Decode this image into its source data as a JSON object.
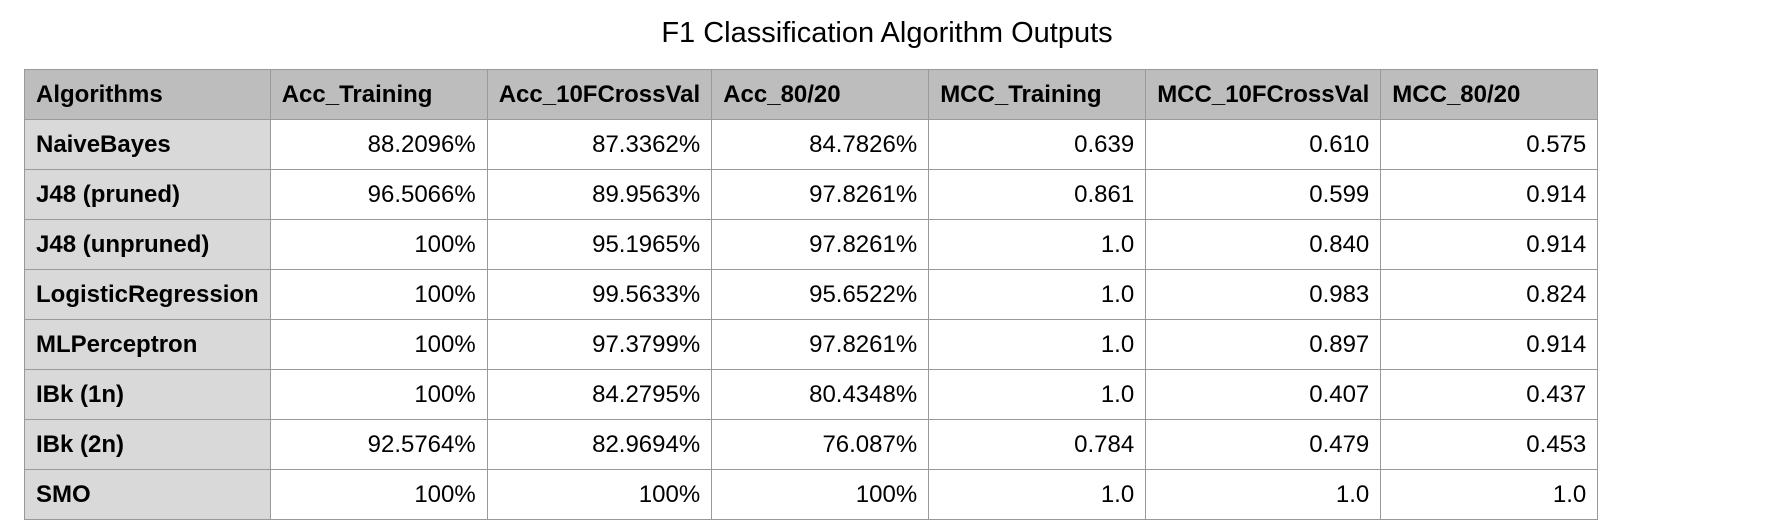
{
  "chart_data": {
    "type": "table",
    "title": "F1 Classification Algorithm Outputs",
    "columns": [
      "Algorithms",
      "Acc_Training",
      "Acc_10FCrossVal",
      "Acc_80/20",
      "MCC_Training",
      "MCC_10FCrossVal",
      "MCC_80/20"
    ],
    "rows": [
      [
        "NaiveBayes",
        "88.2096%",
        "87.3362%",
        "84.7826%",
        "0.639",
        "0.610",
        "0.575"
      ],
      [
        "J48 (pruned)",
        "96.5066%",
        "89.9563%",
        "97.8261%",
        "0.861",
        "0.599",
        "0.914"
      ],
      [
        "J48 (unpruned)",
        "100%",
        "95.1965%",
        "97.8261%",
        "1.0",
        "0.840",
        "0.914"
      ],
      [
        "LogisticRegression",
        "100%",
        "99.5633%",
        "95.6522%",
        "1.0",
        "0.983",
        "0.824"
      ],
      [
        "MLPerceptron",
        "100%",
        "97.3799%",
        "97.8261%",
        "1.0",
        "0.897",
        "0.914"
      ],
      [
        "IBk (1n)",
        "100%",
        "84.2795%",
        "80.4348%",
        "1.0",
        "0.407",
        "0.437"
      ],
      [
        "IBk (2n)",
        "92.5764%",
        "82.9694%",
        "76.087%",
        "0.784",
        "0.479",
        "0.453"
      ],
      [
        "SMO",
        "100%",
        "100%",
        "100%",
        "1.0",
        "1.0",
        "1.0"
      ]
    ]
  },
  "colors": {
    "header_background": "#bdbdbd",
    "row_header_background": "#d9d9d9",
    "grid_line": "#999999"
  }
}
